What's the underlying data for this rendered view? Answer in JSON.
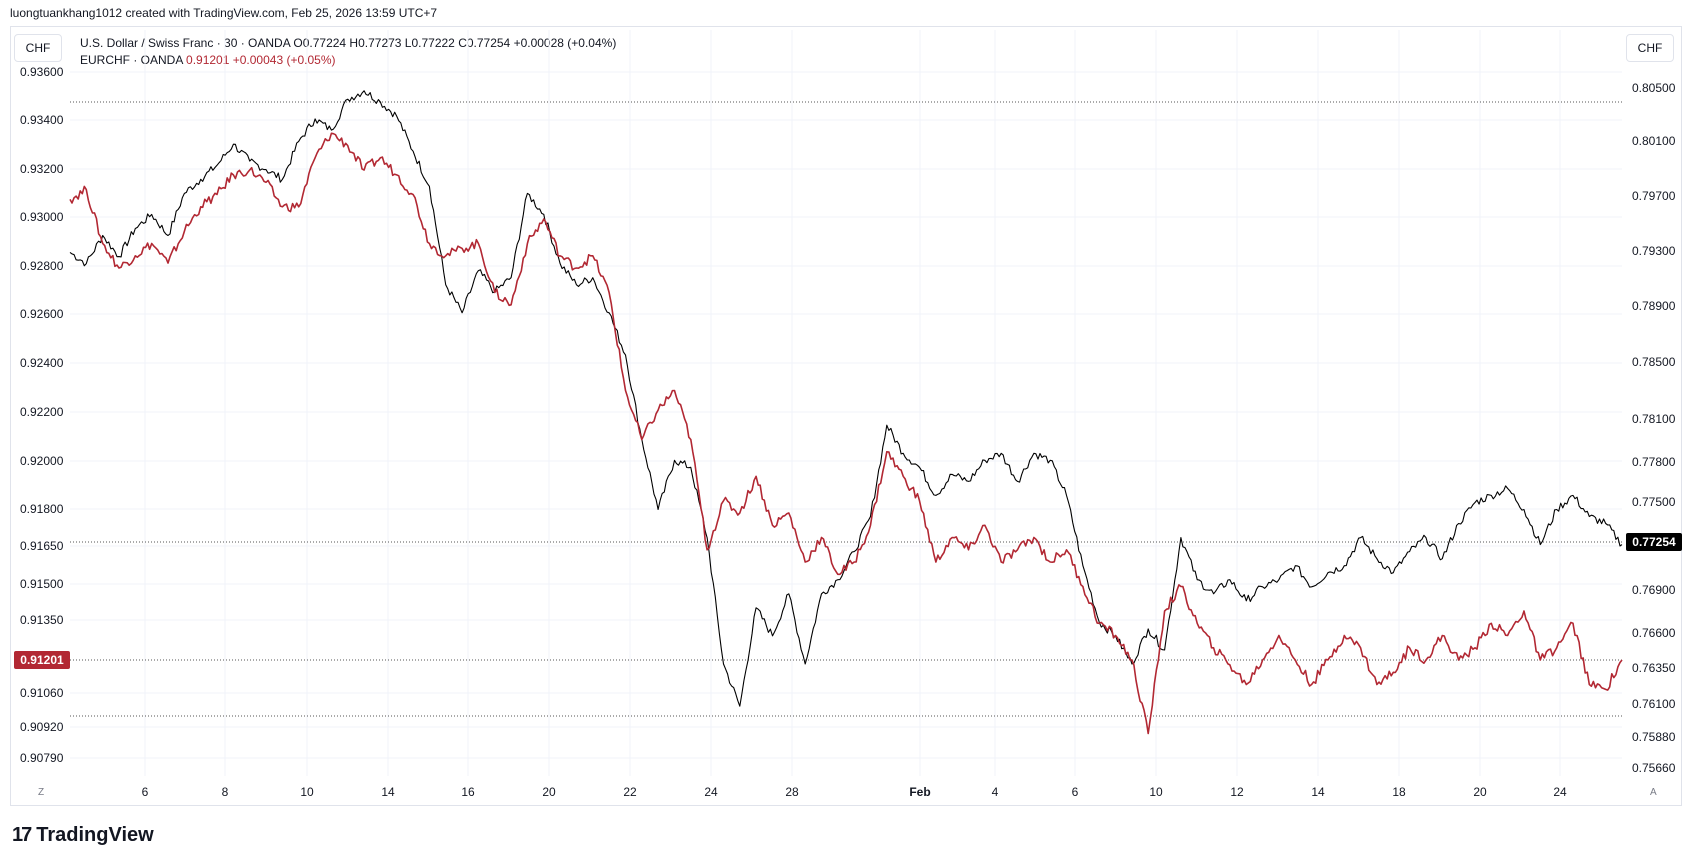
{
  "header": {
    "text": "luongtuankhang1012 created with TradingView.com, Feb 25, 2026 13:59 UTC+7"
  },
  "left_currency": "CHF",
  "right_currency": "CHF",
  "legend": {
    "line1": "U.S. Dollar / Swiss Franc · 30 · OANDA  O0.77224  H0.77273  L0.77222  C0.77254  +0.00028 (+0.04%)",
    "line2_name": "EURCHF · OANDA",
    "line2_values": "0.91201  +0.00043 (+0.05%)"
  },
  "brand": "TradingView",
  "left_scale_btn": "Z",
  "right_scale_btn": "A",
  "colors": {
    "usdchf": "#000000",
    "eurchf": "#b22833",
    "grid": "#f0f3fa",
    "badge_bg": "#000000",
    "badge_red": "#b22833"
  },
  "chart_data": {
    "type": "line",
    "x_ticks": [
      "6",
      "8",
      "10",
      "14",
      "16",
      "20",
      "22",
      "24",
      "28",
      "Feb",
      "4",
      "6",
      "10",
      "12",
      "14",
      "18",
      "20",
      "24"
    ],
    "left_axis": {
      "ticks": [
        "0.93600",
        "0.93400",
        "0.93200",
        "0.93000",
        "0.92800",
        "0.92600",
        "0.92400",
        "0.92200",
        "0.92000",
        "0.91800",
        "0.91650",
        "0.91500",
        "0.91350",
        "0.91060",
        "0.90920",
        "0.90790"
      ],
      "current_label": "0.91201"
    },
    "right_axis": {
      "ticks": [
        "0.80500",
        "0.80100",
        "0.79700",
        "0.79300",
        "0.78900",
        "0.78500",
        "0.78100",
        "0.77800",
        "0.77500",
        "0.77200",
        "0.76900",
        "0.76600",
        "0.76350",
        "0.76100",
        "0.75880",
        "0.75660"
      ],
      "current_label": "0.77254"
    },
    "series": [
      {
        "name": "USDCHF",
        "axis": "right",
        "values": [
          0.7933,
          0.7925,
          0.7945,
          0.793,
          0.795,
          0.796,
          0.7945,
          0.7975,
          0.7985,
          0.7995,
          0.801,
          0.7998,
          0.7992,
          0.7985,
          0.8012,
          0.8028,
          0.802,
          0.8042,
          0.8048,
          0.804,
          0.803,
          0.8005,
          0.798,
          0.791,
          0.789,
          0.792,
          0.7905,
          0.7915,
          0.7975,
          0.796,
          0.7925,
          0.791,
          0.7915,
          0.789,
          0.786,
          0.78,
          0.775,
          0.7785,
          0.778,
          0.773,
          0.764,
          0.761,
          0.768,
          0.766,
          0.769,
          0.764,
          0.769,
          0.77,
          0.772,
          0.7745,
          0.781,
          0.779,
          0.778,
          0.776,
          0.7775,
          0.777,
          0.7785,
          0.779,
          0.777,
          0.779,
          0.7785,
          0.776,
          0.771,
          0.767,
          0.766,
          0.764,
          0.7665,
          0.765,
          0.773,
          0.77,
          0.769,
          0.77,
          0.7685,
          0.7695,
          0.77,
          0.771,
          0.7695,
          0.7705,
          0.771,
          0.773,
          0.7715,
          0.7705,
          0.772,
          0.773,
          0.7715,
          0.774,
          0.7755,
          0.776,
          0.7765,
          0.775,
          0.7725,
          0.775,
          0.776,
          0.7745,
          0.774,
          0.7725
        ]
      },
      {
        "name": "EURCHF",
        "axis": "left",
        "values": [
          0.9308,
          0.9312,
          0.929,
          0.928,
          0.9285,
          0.929,
          0.9282,
          0.9295,
          0.9305,
          0.931,
          0.9318,
          0.932,
          0.9315,
          0.9305,
          0.9305,
          0.9325,
          0.9335,
          0.933,
          0.932,
          0.9325,
          0.9318,
          0.931,
          0.929,
          0.9285,
          0.9288,
          0.929,
          0.927,
          0.9265,
          0.929,
          0.93,
          0.9285,
          0.928,
          0.9285,
          0.927,
          0.923,
          0.921,
          0.9222,
          0.923,
          0.921,
          0.9165,
          0.9185,
          0.918,
          0.9195,
          0.9175,
          0.918,
          0.916,
          0.917,
          0.9155,
          0.916,
          0.9175,
          0.9205,
          0.9195,
          0.9185,
          0.916,
          0.917,
          0.9165,
          0.9175,
          0.916,
          0.9165,
          0.917,
          0.916,
          0.9165,
          0.915,
          0.9135,
          0.913,
          0.912,
          0.909,
          0.914,
          0.915,
          0.9135,
          0.9125,
          0.9118,
          0.911,
          0.912,
          0.913,
          0.912,
          0.911,
          0.912,
          0.913,
          0.9125,
          0.911,
          0.9115,
          0.9125,
          0.912,
          0.913,
          0.912,
          0.9125,
          0.9135,
          0.913,
          0.914,
          0.912,
          0.9125,
          0.9135,
          0.911,
          0.9108,
          0.912
        ]
      }
    ],
    "grid": true
  }
}
